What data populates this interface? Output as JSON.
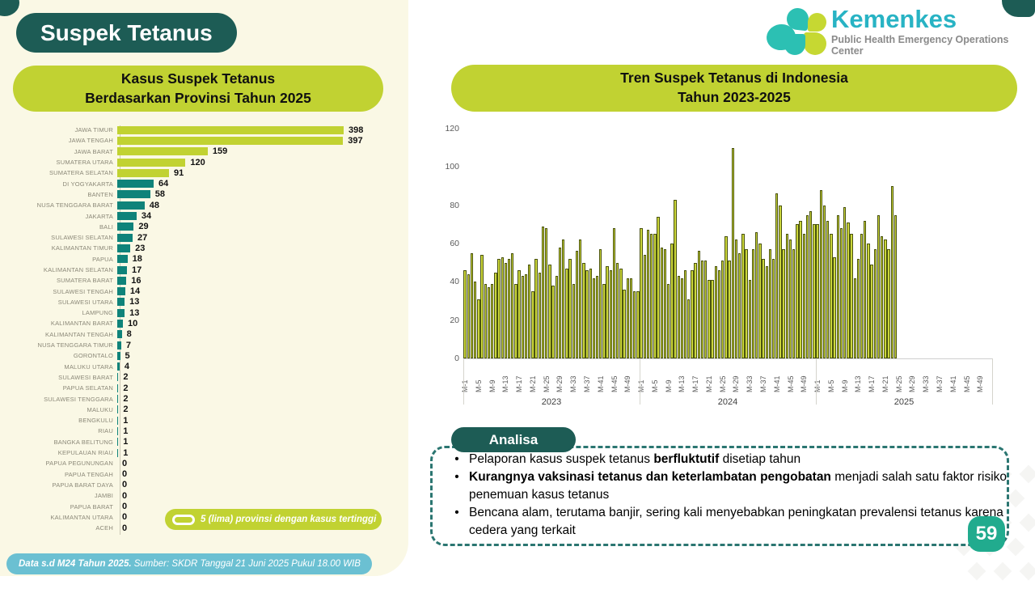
{
  "page": {
    "title": "Suspek Tetanus",
    "page_number": "59",
    "footer": {
      "bold": "Data s.d M24 Tahun 2025.",
      "rest": " Sumber: SKDR Tanggal 21 Juni 2025 Pukul 18.00 WIB"
    }
  },
  "logo": {
    "name": "Kemenkes",
    "subtitle": "Public Health Emergency Operations Center"
  },
  "left_chart": {
    "title_line1": "Kasus Suspek Tetanus",
    "title_line2": "Berdasarkan Provinsi Tahun 2025",
    "legend": "5 (lima) provinsi dengan kasus tertinggi"
  },
  "right_chart": {
    "title_line1": "Tren Suspek Tetanus di Indonesia",
    "title_line2": "Tahun 2023-2025"
  },
  "analisa": {
    "heading": "Analisa",
    "bullets": [
      [
        {
          "t": "Pelaporan kasus suspek tetanus ",
          "b": false
        },
        {
          "t": "berfluktutif",
          "b": true
        },
        {
          "t": " disetiap tahun",
          "b": false
        }
      ],
      [
        {
          "t": "Kurangnya vaksinasi tetanus dan keterlambatan pengobatan",
          "b": true
        },
        {
          "t": " menjadi salah satu faktor risiko penemuan kasus tetanus",
          "b": false
        }
      ],
      [
        {
          "t": "Bencana alam, terutama banjir, sering kali menyebabkan peningkatan prevalensi tetanus karena cedera yang terkait",
          "b": false
        }
      ]
    ]
  },
  "colors": {
    "dark_teal": "#1d5c55",
    "lime": "#c1d232",
    "teal_bar": "#0f837a",
    "trend_bar": "#cbd63b",
    "trend_bar_border": "#4a530f",
    "footer_blue": "#6bc0d2",
    "badge_green": "#21ab8e",
    "kemenkes_cyan": "#28b3c4",
    "cream": "#faf8e5"
  },
  "chart_data": [
    {
      "type": "bar",
      "orientation": "horizontal",
      "title": "Kasus Suspek Tetanus Berdasarkan Provinsi Tahun 2025",
      "top_n_highlighted": 5,
      "legend": "5 (lima) provinsi dengan kasus tertinggi",
      "categories": [
        "JAWA TIMUR",
        "JAWA TENGAH",
        "JAWA BARAT",
        "SUMATERA UTARA",
        "SUMATERA SELATAN",
        "DI YOGYAKARTA",
        "BANTEN",
        "NUSA TENGGARA BARAT",
        "JAKARTA",
        "BALI",
        "SULAWESI SELATAN",
        "KALIMANTAN TIMUR",
        "PAPUA",
        "KALIMANTAN SELATAN",
        "SUMATERA BARAT",
        "SULAWESI TENGAH",
        "SULAWESI UTARA",
        "LAMPUNG",
        "KALIMANTAN BARAT",
        "KALIMANTAN TENGAH",
        "NUSA TENGGARA TIMUR",
        "GORONTALO",
        "MALUKU UTARA",
        "SULAWESI BARAT",
        "PAPUA SELATAN",
        "SULAWESI TENGGARA",
        "MALUKU",
        "BENGKULU",
        "RIAU",
        "BANGKA BELITUNG",
        "KEPULAUAN RIAU",
        "PAPUA PEGUNUNGAN",
        "PAPUA TENGAH",
        "PAPUA BARAT DAYA",
        "JAMBI",
        "PAPUA BARAT",
        "KALIMANTAN UTARA",
        "ACEH"
      ],
      "values": [
        398,
        397,
        159,
        120,
        91,
        64,
        58,
        48,
        34,
        29,
        27,
        23,
        18,
        17,
        16,
        14,
        13,
        13,
        10,
        8,
        7,
        5,
        4,
        2,
        2,
        2,
        2,
        1,
        1,
        1,
        1,
        0,
        0,
        0,
        0,
        0,
        0,
        0
      ]
    },
    {
      "type": "bar",
      "title": "Tren Suspek Tetanus di Indonesia Tahun 2023-2025",
      "ylim": [
        0,
        120
      ],
      "yticks": [
        0,
        20,
        40,
        60,
        80,
        100,
        120
      ],
      "x_tick_weeks": [
        "M-1",
        "M-5",
        "M-9",
        "M-13",
        "M-17",
        "M-21",
        "M-25",
        "M-29",
        "M-33",
        "M-37",
        "M-41",
        "M-45",
        "M-49"
      ],
      "slots_per_group": 52,
      "grid": false,
      "groups": [
        {
          "year": "2023",
          "values": [
            46,
            44,
            55,
            40,
            31,
            54,
            39,
            37,
            39,
            45,
            52,
            53,
            50,
            52,
            55,
            39,
            46,
            43,
            44,
            49,
            35,
            52,
            45,
            69,
            68,
            49,
            38,
            43,
            58,
            62,
            47,
            52,
            39,
            56,
            62,
            50,
            46,
            47,
            42,
            43,
            57,
            39,
            48,
            46,
            68,
            50,
            47,
            36,
            42,
            42,
            35,
            35
          ]
        },
        {
          "year": "2024",
          "values": [
            68,
            54,
            67,
            65,
            65,
            74,
            58,
            57,
            39,
            60,
            83,
            43,
            42,
            46,
            31,
            46,
            50,
            56,
            51,
            51,
            41,
            41,
            48,
            46,
            51,
            64,
            51,
            110,
            62,
            55,
            65,
            57,
            41,
            57,
            66,
            60,
            52,
            48,
            57,
            52,
            86,
            80,
            57,
            65,
            62,
            57,
            70,
            72,
            65,
            75,
            77,
            70
          ]
        },
        {
          "year": "2025",
          "values": [
            70,
            88,
            80,
            72,
            65,
            53,
            75,
            68,
            79,
            71,
            65,
            42,
            52,
            65,
            72,
            60,
            49,
            57,
            75,
            64,
            62,
            57,
            90,
            75
          ]
        }
      ]
    }
  ]
}
